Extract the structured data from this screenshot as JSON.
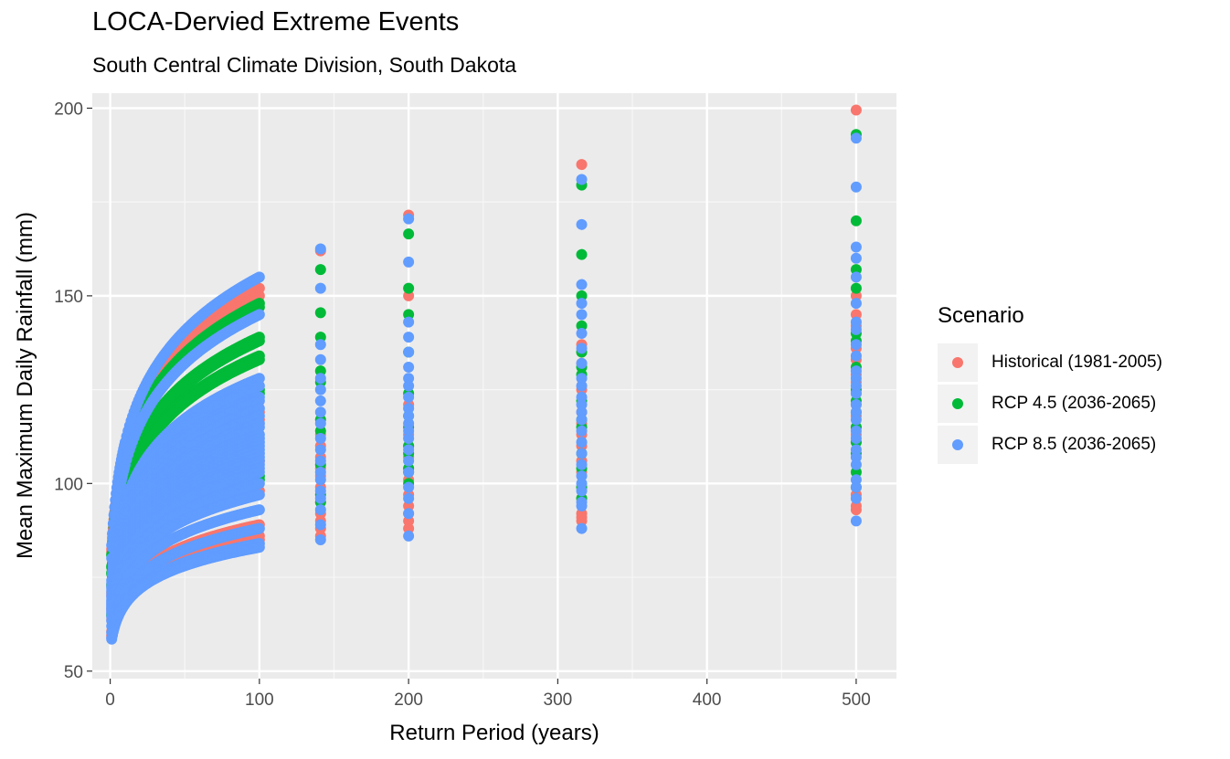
{
  "chart_data": {
    "type": "scatter",
    "title": "LOCA-Dervied Extreme Events",
    "subtitle": "South Central Climate Division, South Dakota",
    "xlabel": "Return Period (years)",
    "ylabel": "Mean Maximum Daily Rainfall (mm)",
    "xlim": [
      -12,
      527
    ],
    "ylim": [
      48,
      204
    ],
    "xticks": [
      0,
      100,
      200,
      300,
      400,
      500
    ],
    "yticks": [
      50,
      100,
      150,
      200
    ],
    "grid": true,
    "legend_position": "right",
    "legend_title": "Scenario",
    "series": [
      {
        "name": "Historical (1981-2005)",
        "color": "#F8766D",
        "curves_a100": [
          152,
          150,
          119,
          117,
          106,
          98,
          89,
          86,
          85
        ],
        "points": {
          "141": [
            162,
            113,
            110,
            107,
            104,
            102,
            99,
            95,
            92,
            90,
            88,
            86
          ],
          "200": [
            171.5,
            150,
            121,
            113,
            110,
            107,
            104,
            101,
            97,
            94,
            92,
            90,
            88
          ],
          "316": [
            185,
            137,
            135,
            132,
            125,
            119,
            116,
            113,
            110,
            106,
            103,
            99,
            96,
            92,
            91,
            90
          ],
          "500": [
            199.5,
            150,
            145,
            142,
            136,
            133,
            129,
            127,
            124,
            121,
            118,
            115,
            113,
            111,
            97,
            94,
            93
          ]
        }
      },
      {
        "name": "RCP 4.5 (2036-2065)",
        "color": "#00BA38",
        "curves_a100": [
          148,
          147,
          139,
          138,
          134,
          133,
          125,
          124,
          102,
          101
        ],
        "points": {
          "141": [
            157,
            145.5,
            139,
            130,
            127,
            117,
            114,
            105,
            97,
            95
          ],
          "200": [
            166.5,
            152,
            145,
            135,
            124,
            118,
            115,
            110,
            108,
            104,
            103,
            100
          ],
          "316": [
            179.5,
            161,
            150,
            142,
            135,
            131,
            129,
            122,
            117,
            115,
            108,
            104,
            99,
            96
          ],
          "500": [
            193,
            170,
            157,
            152,
            140,
            138,
            131,
            125,
            122,
            119,
            115,
            111,
            108,
            103,
            99
          ]
        }
      },
      {
        "name": "RCP 8.5 (2036-2065)",
        "color": "#619CFF",
        "curves_a100": [
          155,
          145,
          128,
          126,
          123,
          122,
          120,
          118,
          116,
          115,
          113,
          112,
          111,
          110,
          109,
          108,
          107,
          106,
          105,
          104,
          103,
          100,
          97,
          93,
          88,
          84,
          83
        ],
        "points": {
          "141": [
            162.5,
            152,
            137,
            133,
            128,
            125,
            122,
            119,
            116,
            112,
            109,
            106,
            103,
            101,
            98,
            96,
            93,
            89,
            85
          ],
          "200": [
            170.5,
            159,
            143,
            139,
            135,
            131,
            128,
            126,
            123,
            120,
            118,
            116,
            114,
            112,
            109,
            106,
            103,
            99,
            96,
            92,
            86
          ],
          "316": [
            181,
            169,
            153,
            148,
            145,
            140,
            136,
            132,
            128,
            126,
            123,
            121,
            119,
            117,
            114,
            111,
            108,
            105,
            102,
            100,
            98,
            95,
            94,
            88
          ],
          "500": [
            192,
            179,
            163,
            160,
            155,
            148,
            143,
            141,
            137,
            134,
            130,
            128,
            126,
            124,
            121,
            119,
            117,
            114,
            112,
            109,
            107,
            105,
            101,
            99,
            96,
            90
          ]
        }
      }
    ]
  }
}
